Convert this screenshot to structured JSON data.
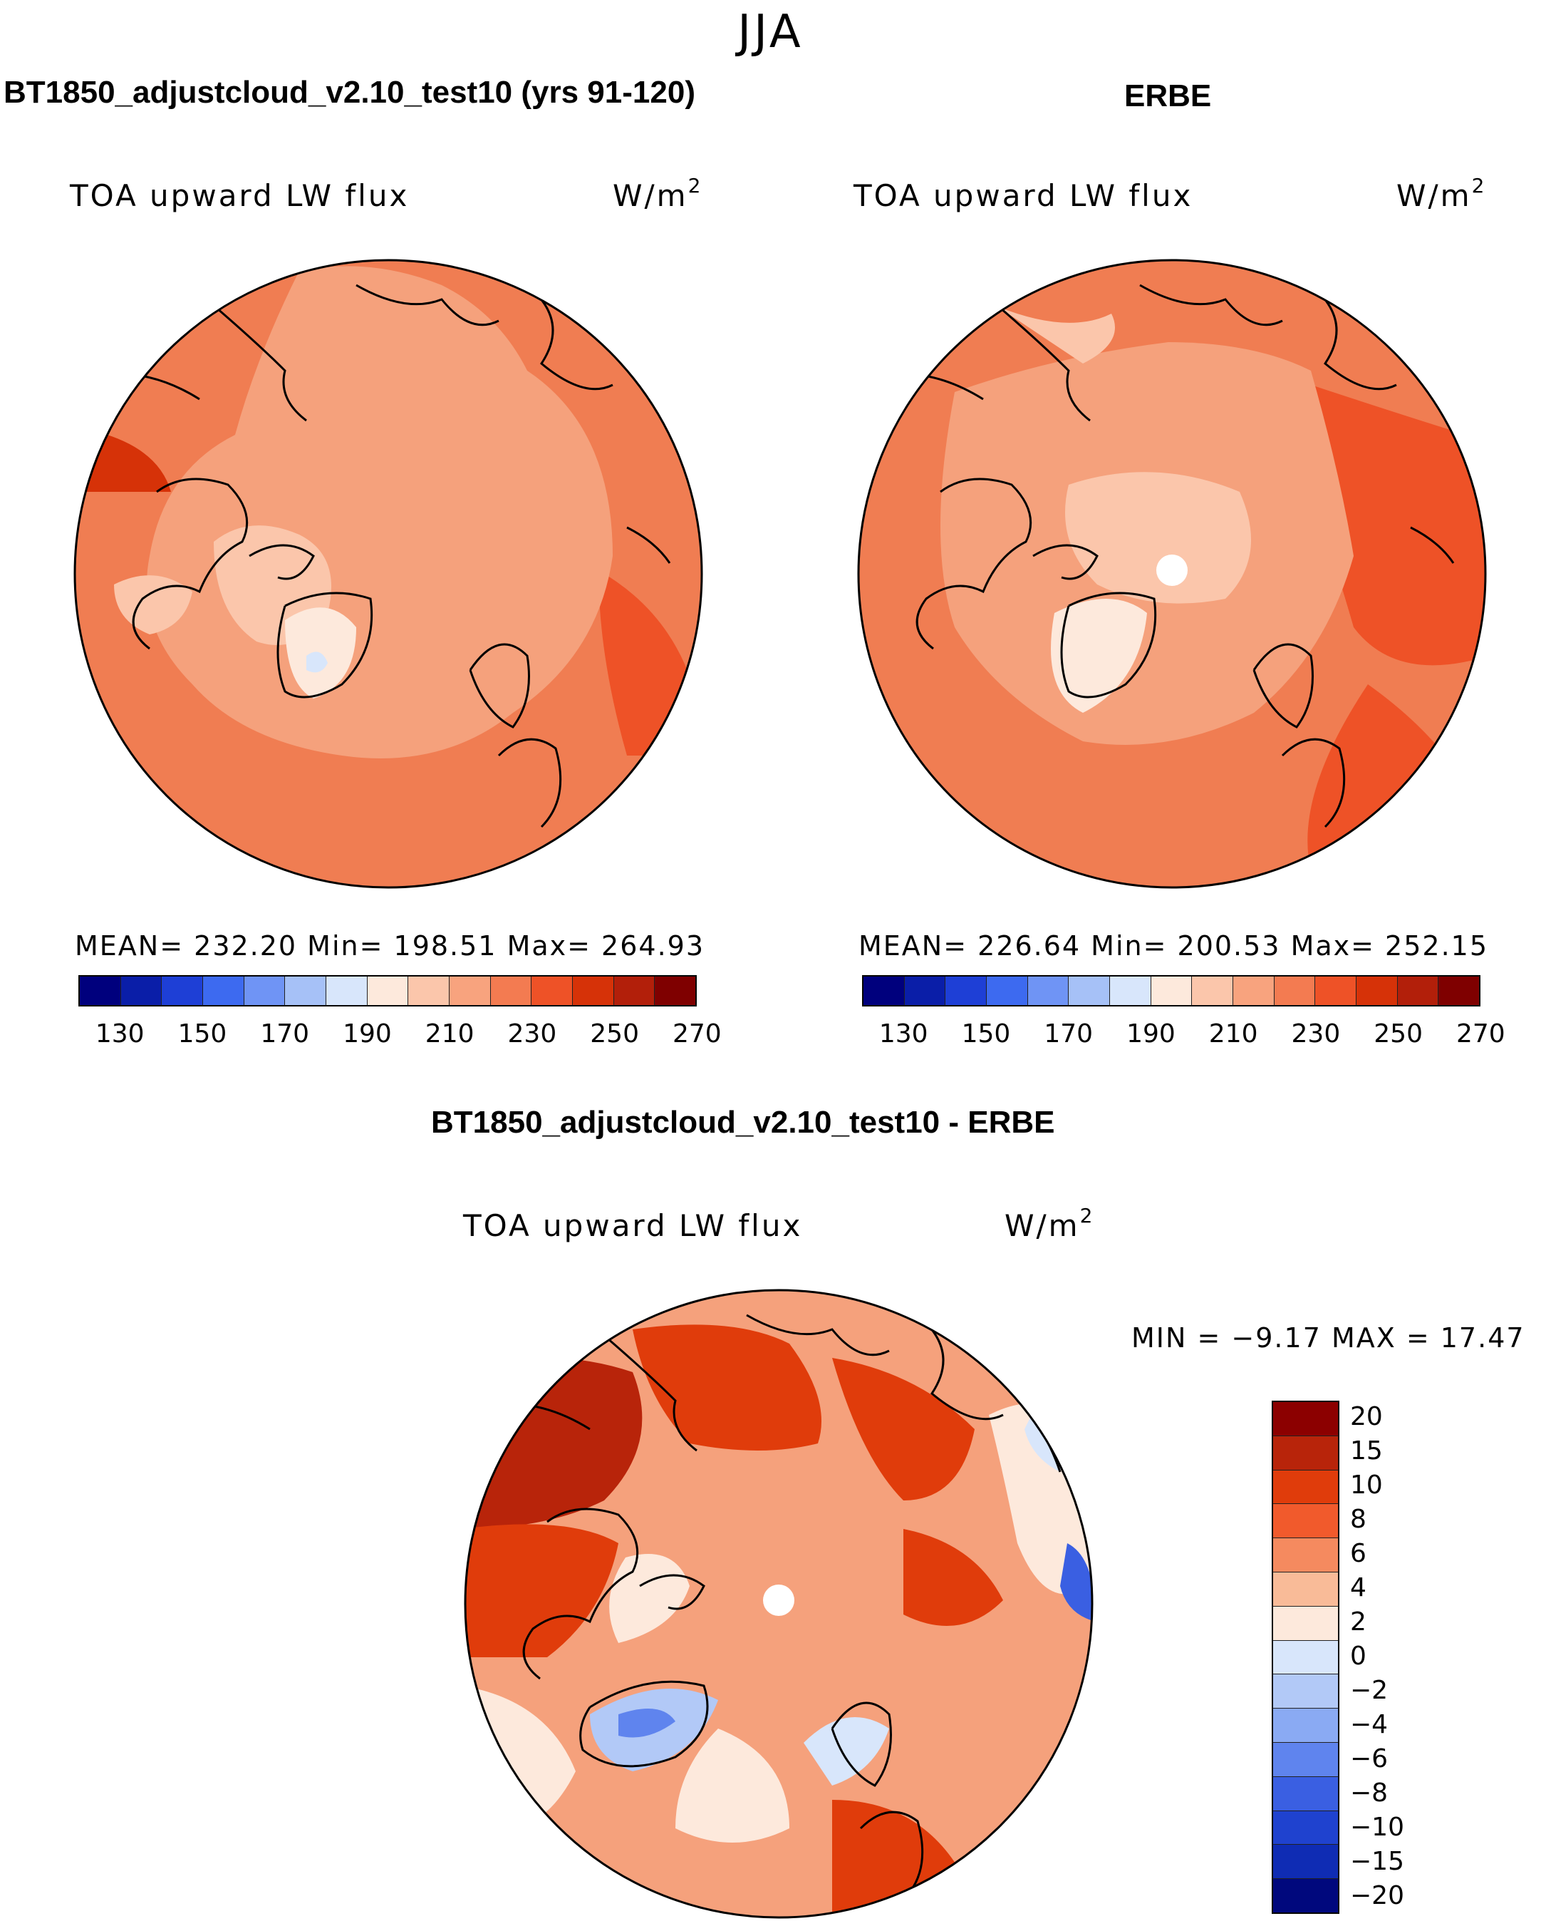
{
  "figure": {
    "season": "JJA",
    "model_title": "BT1850_adjustcloud_v2.10_test10 (yrs 91-120)",
    "obs_title": "ERBE",
    "diff_title": "BT1850_adjustcloud_v2.10_test10 - ERBE"
  },
  "panels": {
    "model": {
      "variable": "TOA upward LW flux",
      "units": "W/m",
      "units_exp": "2",
      "stats": "MEAN= 232.20   Min= 198.51   Max= 264.93",
      "mean": 232.2,
      "min": 198.51,
      "max": 264.93
    },
    "obs": {
      "variable": "TOA upward LW flux",
      "units": "W/m",
      "units_exp": "2",
      "stats": "MEAN= 226.64   Min= 200.53   Max= 252.15",
      "mean": 226.64,
      "min": 200.53,
      "max": 252.15
    },
    "diff": {
      "variable": "TOA upward LW flux",
      "units": "W/m",
      "units_exp": "2",
      "stats": "MIN =   −9.17 MAX =   17.47",
      "min": -9.17,
      "max": 17.47
    }
  },
  "colorbars": {
    "field": {
      "colors": [
        "#00007d",
        "#0a1ea8",
        "#1e3fd6",
        "#3d6af0",
        "#6f94f5",
        "#a6c1f7",
        "#d8e6fb",
        "#fde9dc",
        "#fbc6ab",
        "#f8a37e",
        "#f37b51",
        "#ee5227",
        "#d63208",
        "#b21f0a",
        "#7f0000"
      ],
      "tick_labels": [
        "130",
        "150",
        "170",
        "190",
        "210",
        "230",
        "250",
        "270"
      ]
    },
    "diff": {
      "colors": [
        "#8c0000",
        "#b8240a",
        "#e03c0b",
        "#f15a2c",
        "#f58a5f",
        "#f9bb98",
        "#fde9dc",
        "#d8e6fb",
        "#b2c9f7",
        "#8aaaf3",
        "#5f84ee",
        "#3a5fe2",
        "#1f42cf",
        "#0f2cb4",
        "#00087d"
      ],
      "labels": [
        "20",
        "15",
        "10",
        "8",
        "6",
        "4",
        "2",
        "0",
        "−2",
        "−4",
        "−6",
        "−8",
        "−10",
        "−15",
        "−20"
      ]
    }
  },
  "map_colors": {
    "model": {
      "base": "#f07d52",
      "mid": "#f5a17c",
      "light": "#fbc6ab",
      "pale": "#fde9dc",
      "dark": "#e95423",
      "blue": "#d8e6fb"
    },
    "obs": {
      "base": "#f07d52",
      "mid": "#f5a17c",
      "light": "#fbc6ab",
      "pale": "#fde9dc",
      "dark": "#e95423"
    },
    "diff": {
      "base": "#f5a17c",
      "light": "#fbc6ab",
      "pale": "#fde9dc",
      "dark": "#e03c0b",
      "darker": "#b8240a",
      "blue": "#d8e6fb",
      "blue2": "#8aaaf3",
      "blue3": "#3a5fe2"
    }
  }
}
